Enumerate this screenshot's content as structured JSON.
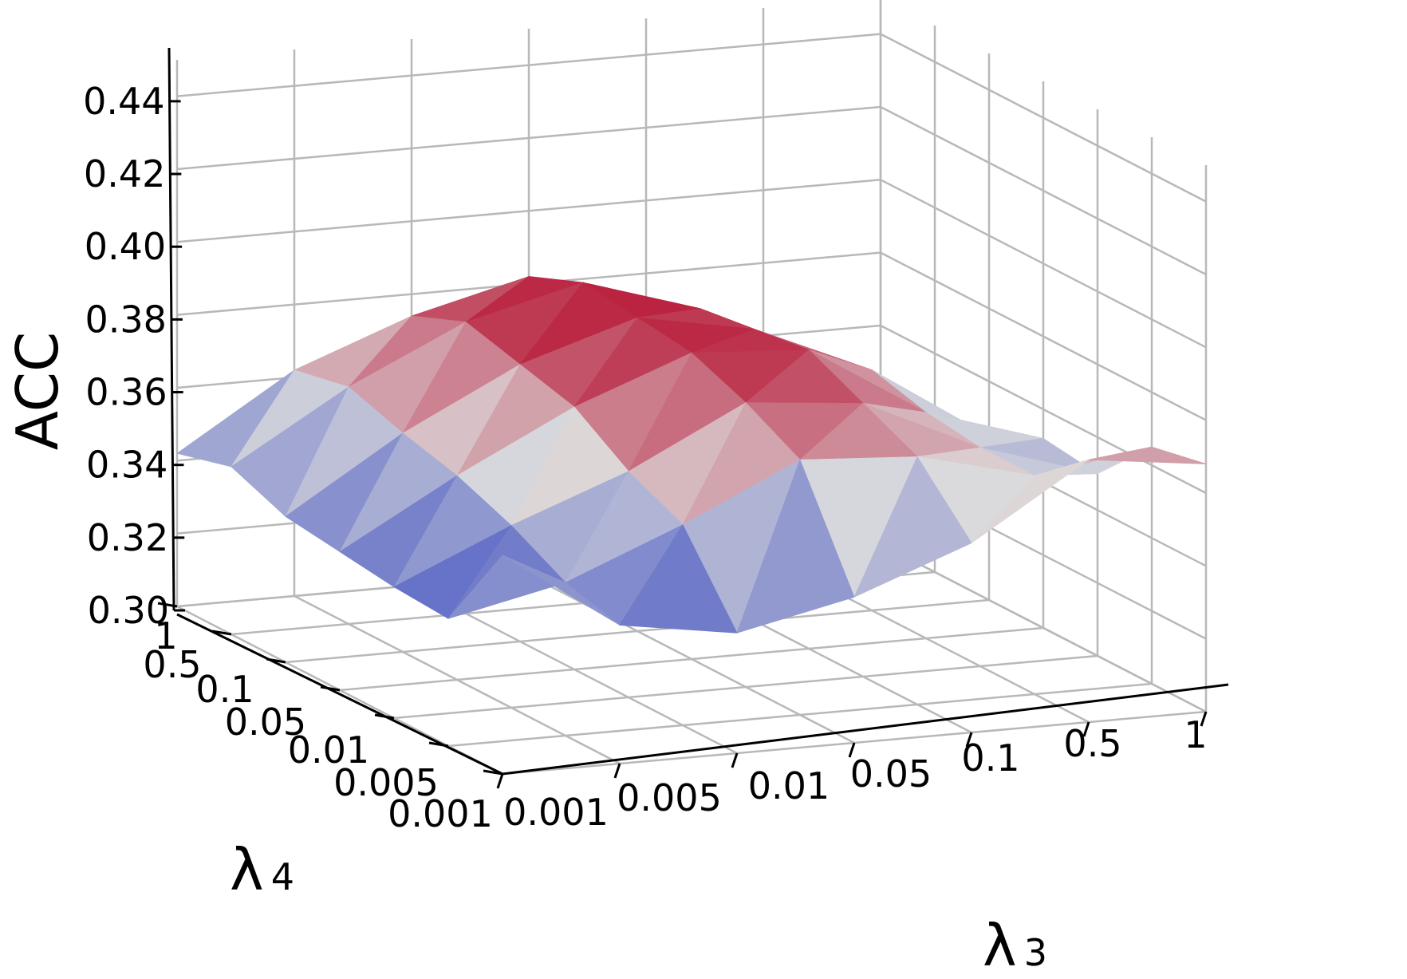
{
  "chart_data": {
    "type": "surface3d",
    "title": "",
    "xlabel": "λ3",
    "ylabel": "λ4",
    "zlabel": "ACC",
    "x_label_main": "λ",
    "x_label_sub": "3",
    "y_label_main": "λ",
    "y_label_sub": "4",
    "x_ticks": [
      "0.001",
      "0.005",
      "0.01",
      "0.05",
      "0.1",
      "0.5",
      "1"
    ],
    "y_ticks": [
      "0.001",
      "0.005",
      "0.01",
      "0.05",
      "0.1",
      "0.5",
      "1"
    ],
    "z_ticks": [
      "0.30",
      "0.32",
      "0.34",
      "0.36",
      "0.38",
      "0.40",
      "0.42",
      "0.44"
    ],
    "zlim": [
      0.3,
      0.45
    ],
    "colormap": "coolwarm",
    "color_low": "#3b4cc0",
    "color_mid": "#dddddd",
    "color_high": "#b40426",
    "grid": true,
    "z": [
      [
        0.36,
        0.338,
        0.333,
        0.34,
        0.352,
        0.372,
        0.368
      ],
      [
        0.335,
        0.342,
        0.355,
        0.37,
        0.368,
        0.36,
        0.365
      ],
      [
        0.336,
        0.35,
        0.362,
        0.378,
        0.375,
        0.36,
        0.35
      ],
      [
        0.338,
        0.356,
        0.372,
        0.384,
        0.382,
        0.362,
        0.352
      ],
      [
        0.34,
        0.36,
        0.376,
        0.386,
        0.38,
        0.366,
        0.345
      ],
      [
        0.346,
        0.365,
        0.38,
        0.388,
        0.378,
        0.356,
        0.34
      ],
      [
        0.342,
        0.362,
        0.374,
        0.382,
        0.37,
        0.35,
        0.336
      ]
    ]
  }
}
